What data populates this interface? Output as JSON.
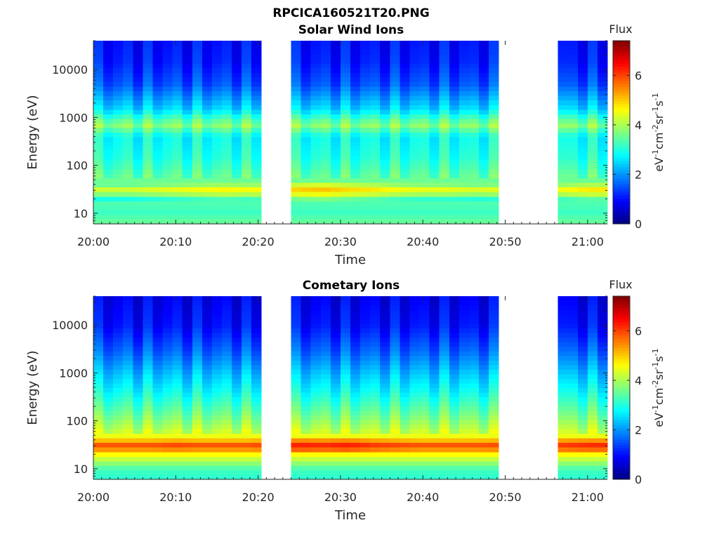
{
  "figure": {
    "title": "RPCICA160521T20.PNG"
  },
  "panels": [
    {
      "title": "Solar Wind Ions",
      "xlabel": "Time",
      "ylabel": "Energy (eV)",
      "colorbar": {
        "title": "Flux",
        "unit_base": "eV",
        "unit_sup1": "-1",
        "unit_mid1": "cm",
        "unit_sup2": "-2",
        "unit_mid2": "sr",
        "unit_sup3": "-1",
        "unit_mid3": "s",
        "unit_sup4": "-1"
      }
    },
    {
      "title": "Cometary Ions",
      "xlabel": "Time",
      "ylabel": "Energy (eV)",
      "colorbar": {
        "title": "Flux",
        "unit_base": "eV",
        "unit_sup1": "-1",
        "unit_mid1": "cm",
        "unit_sup2": "-2",
        "unit_mid2": "sr",
        "unit_sup3": "-1",
        "unit_mid3": "s",
        "unit_sup4": "-1"
      }
    }
  ],
  "chart_data": [
    {
      "type": "heatmap",
      "title": "Solar Wind Ions",
      "xlabel": "Time",
      "ylabel": "Energy (eV)",
      "x_ticks": [
        "20:00",
        "20:10",
        "20:20",
        "20:30",
        "20:40",
        "20:50",
        "21:00"
      ],
      "x_range_minutes": [
        0,
        62.4
      ],
      "y_scale": "log",
      "y_ticks": [
        "10",
        "100",
        "1000",
        "10000"
      ],
      "y_range": [
        6,
        40000
      ],
      "colorbar": {
        "label": "Flux",
        "ticks": [
          "0",
          "2",
          "4",
          "6"
        ],
        "range": [
          0,
          7.4
        ],
        "colormap": "jet"
      },
      "data_gaps_minutes": [
        [
          20.3,
          23.5
        ],
        [
          49.1,
          56.0
        ]
      ],
      "energy_profile": {
        "energy_eV": [
          7,
          10,
          20,
          30,
          45,
          80,
          150,
          400,
          700,
          1500,
          5000,
          15000,
          35000
        ],
        "flux": [
          3.5,
          3.2,
          3.4,
          4.9,
          3.6,
          3.3,
          3.0,
          2.8,
          3.8,
          2.5,
          1.5,
          1.1,
          1.0
        ]
      },
      "peak_band_eV": 30,
      "peak_flux": 5.2,
      "x_minutes": [
        1,
        4,
        7,
        10,
        13,
        16,
        19,
        25,
        28,
        31,
        34,
        37,
        40,
        43,
        46,
        57,
        60
      ],
      "peak_flux_by_time": [
        4.7,
        4.7,
        4.8,
        4.9,
        5.0,
        5.1,
        5.0,
        5.4,
        5.5,
        5.3,
        5.2,
        5.0,
        4.9,
        4.9,
        4.8,
        5.0,
        5.2
      ]
    },
    {
      "type": "heatmap",
      "title": "Cometary Ions",
      "xlabel": "Time",
      "ylabel": "Energy (eV)",
      "x_ticks": [
        "20:00",
        "20:10",
        "20:20",
        "20:30",
        "20:40",
        "20:50",
        "21:00"
      ],
      "x_range_minutes": [
        0,
        62.4
      ],
      "y_scale": "log",
      "y_ticks": [
        "10",
        "100",
        "1000",
        "10000"
      ],
      "y_range": [
        6,
        40000
      ],
      "colorbar": {
        "label": "Flux",
        "ticks": [
          "0",
          "2",
          "4",
          "6"
        ],
        "range": [
          0,
          7.4
        ],
        "colormap": "jet"
      },
      "data_gaps_minutes": [
        [
          20.3,
          23.5
        ],
        [
          49.1,
          56.0
        ]
      ],
      "energy_profile": {
        "energy_eV": [
          7,
          10,
          20,
          30,
          45,
          60,
          100,
          200,
          500,
          1000,
          3000,
          10000,
          20000,
          35000
        ],
        "flux": [
          3.1,
          3.3,
          4.6,
          6.0,
          4.6,
          4.2,
          3.8,
          3.3,
          2.7,
          2.3,
          1.6,
          1.0,
          0.9,
          0.8
        ]
      },
      "peak_band_eV": 32,
      "peak_flux": 6.0,
      "x_minutes": [
        1,
        4,
        7,
        10,
        13,
        16,
        19,
        25,
        28,
        31,
        34,
        37,
        40,
        43,
        46,
        57,
        60
      ],
      "peak_flux_by_time": [
        6.0,
        6.0,
        6.0,
        6.1,
        6.0,
        6.0,
        6.0,
        6.4,
        6.3,
        6.4,
        6.2,
        6.1,
        6.0,
        6.0,
        6.0,
        6.2,
        6.3
      ]
    }
  ]
}
